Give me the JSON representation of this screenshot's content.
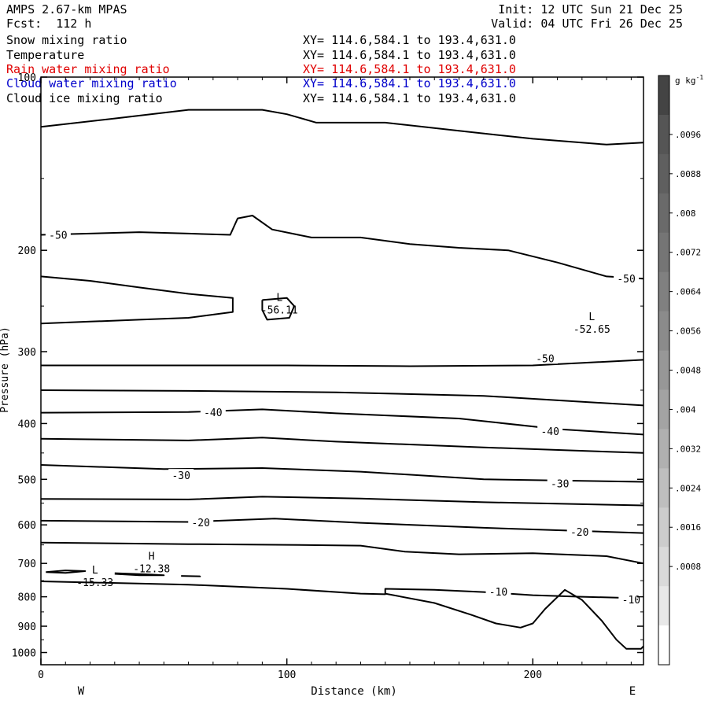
{
  "header": {
    "model": "AMPS 2.67-km MPAS",
    "forecast": "Fcst:  112 h",
    "init": "Init: 12 UTC Sun 21 Dec 25",
    "valid": "Valid: 04 UTC Fri 26 Dec 25"
  },
  "fields": [
    {
      "name": "Snow mixing ratio",
      "xy": "XY= 114.6,584.1 to 193.4,631.0",
      "color": "#000000"
    },
    {
      "name": "Temperature",
      "xy": "XY= 114.6,584.1 to 193.4,631.0",
      "color": "#000000"
    },
    {
      "name": "Rain water mixing ratio",
      "xy": "XY= 114.6,584.1 to 193.4,631.0",
      "color": "#e00000"
    },
    {
      "name": "Cloud water mixing ratio",
      "xy": "XY= 114.6,584.1 to 193.4,631.0",
      "color": "#0000cc"
    },
    {
      "name": "Cloud ice mixing ratio",
      "xy": "XY= 114.6,584.1 to 193.4,631.0",
      "color": "#000000"
    }
  ],
  "chart_data": {
    "type": "contour",
    "xlabel": "Distance (km)",
    "ylabel": "Pressure (hPa)",
    "xlim": [
      0,
      245
    ],
    "ylim": [
      1050,
      100
    ],
    "y_scale": "log",
    "x_ticks": [
      0,
      100,
      200
    ],
    "x_tick_labels": [
      "0",
      "100",
      "200"
    ],
    "y_ticks": [
      100,
      200,
      300,
      400,
      500,
      600,
      700,
      800,
      900,
      1000
    ],
    "y_tick_labels": [
      "100",
      "200",
      "300",
      "400",
      "500",
      "600",
      "700",
      "800",
      "900",
      "1000"
    ],
    "x_end_labels": {
      "left": "W",
      "right": "E"
    },
    "colorbar": {
      "unit": "g kg",
      "unit_exp": "-1",
      "labels": [
        ".0096",
        ".0088",
        ".008",
        ".0072",
        ".0064",
        ".0056",
        ".0048",
        ".004",
        ".0032",
        ".0024",
        ".0016",
        ".0008"
      ],
      "colors": [
        "#444444",
        "#555555",
        "#5f5f5f",
        "#6a6a6a",
        "#757575",
        "#808080",
        "#8b8b8b",
        "#979797",
        "#a3a3a3",
        "#b0b0b0",
        "#bebebe",
        "#cccccc",
        "#dadada",
        "#e8e8e8",
        "#ffffff"
      ]
    },
    "contour_labels": [
      {
        "text": "-50",
        "x": 7,
        "p": 188
      },
      {
        "text": "-50",
        "x": 238,
        "p": 224
      },
      {
        "text": "-50",
        "x": 205,
        "p": 308
      },
      {
        "text": "-40",
        "x": 70,
        "p": 382
      },
      {
        "text": "-40",
        "x": 207,
        "p": 412
      },
      {
        "text": "-30",
        "x": 57,
        "p": 492
      },
      {
        "text": "-30",
        "x": 211,
        "p": 508
      },
      {
        "text": "-20",
        "x": 65,
        "p": 594
      },
      {
        "text": "-20",
        "x": 219,
        "p": 617
      },
      {
        "text": "-10",
        "x": 186,
        "p": 784
      },
      {
        "text": "-10",
        "x": 240,
        "p": 808
      }
    ],
    "extrema": [
      {
        "type": "L",
        "value": "-56.11",
        "x": 97,
        "p": 248
      },
      {
        "type": "L",
        "value": "-52.65",
        "x": 224,
        "p": 268
      },
      {
        "type": "H",
        "value": "-12.38",
        "x": 45,
        "p": 698
      },
      {
        "type": "L",
        "value": "-15.33",
        "x": 22,
        "p": 738
      }
    ],
    "terrain": [
      [
        140,
        790
      ],
      [
        160,
        820
      ],
      [
        175,
        860
      ],
      [
        185,
        890
      ],
      [
        195,
        905
      ],
      [
        200,
        890
      ],
      [
        205,
        840
      ],
      [
        213,
        778
      ],
      [
        220,
        810
      ],
      [
        228,
        880
      ],
      [
        234,
        950
      ],
      [
        238,
        985
      ],
      [
        244,
        985
      ],
      [
        245,
        975
      ]
    ],
    "isotherms": [
      {
        "name": "-60",
        "points": [
          [
            0,
            122
          ],
          [
            30,
            118
          ],
          [
            60,
            114
          ],
          [
            90,
            114
          ],
          [
            100,
            116
          ],
          [
            112,
            120
          ],
          [
            140,
            120
          ],
          [
            170,
            124
          ],
          [
            200,
            128
          ],
          [
            230,
            131
          ],
          [
            245,
            130
          ]
        ]
      },
      {
        "name": "-55a",
        "points": [
          [
            0,
            222
          ],
          [
            20,
            226
          ],
          [
            40,
            232
          ],
          [
            60,
            238
          ],
          [
            78,
            242
          ],
          [
            78,
            256
          ],
          [
            60,
            262
          ],
          [
            40,
            264
          ],
          [
            20,
            266
          ],
          [
            0,
            268
          ]
        ]
      },
      {
        "name": "-55b",
        "points": [
          [
            90,
            244
          ],
          [
            100,
            242
          ],
          [
            103,
            250
          ],
          [
            101,
            262
          ],
          [
            92,
            264
          ],
          [
            90,
            254
          ],
          [
            90,
            244
          ]
        ]
      },
      {
        "name": "-50a",
        "points": [
          [
            0,
            188
          ],
          [
            20,
            187
          ],
          [
            40,
            186
          ],
          [
            60,
            187
          ],
          [
            77,
            188
          ],
          [
            80,
            176
          ],
          [
            86,
            174
          ],
          [
            94,
            184
          ],
          [
            110,
            190
          ],
          [
            130,
            190
          ],
          [
            150,
            195
          ],
          [
            170,
            198
          ],
          [
            190,
            200
          ],
          [
            210,
            210
          ],
          [
            230,
            222
          ],
          [
            245,
            224
          ]
        ]
      },
      {
        "name": "-50b",
        "points": [
          [
            0,
            317
          ],
          [
            50,
            317
          ],
          [
            100,
            317
          ],
          [
            150,
            318
          ],
          [
            200,
            317
          ],
          [
            245,
            310
          ]
        ]
      },
      {
        "name": "-45",
        "points": [
          [
            0,
            350
          ],
          [
            60,
            351
          ],
          [
            120,
            353
          ],
          [
            180,
            358
          ],
          [
            245,
            372
          ]
        ]
      },
      {
        "name": "-40",
        "points": [
          [
            0,
            383
          ],
          [
            60,
            382
          ],
          [
            90,
            378
          ],
          [
            120,
            384
          ],
          [
            170,
            392
          ],
          [
            210,
            409
          ],
          [
            245,
            418
          ]
        ]
      },
      {
        "name": "-35",
        "points": [
          [
            0,
            425
          ],
          [
            60,
            428
          ],
          [
            90,
            423
          ],
          [
            120,
            430
          ],
          [
            180,
            440
          ],
          [
            245,
            450
          ]
        ]
      },
      {
        "name": "-30",
        "points": [
          [
            0,
            472
          ],
          [
            50,
            480
          ],
          [
            90,
            478
          ],
          [
            130,
            485
          ],
          [
            180,
            500
          ],
          [
            245,
            505
          ]
        ]
      },
      {
        "name": "-25",
        "points": [
          [
            0,
            541
          ],
          [
            60,
            542
          ],
          [
            90,
            536
          ],
          [
            130,
            540
          ],
          [
            180,
            548
          ],
          [
            245,
            555
          ]
        ]
      },
      {
        "name": "-20",
        "points": [
          [
            0,
            590
          ],
          [
            60,
            593
          ],
          [
            95,
            585
          ],
          [
            130,
            595
          ],
          [
            180,
            607
          ],
          [
            245,
            620
          ]
        ]
      },
      {
        "name": "-15a",
        "points": [
          [
            0,
            644
          ],
          [
            60,
            648
          ],
          [
            100,
            650
          ],
          [
            130,
            652
          ],
          [
            148,
            668
          ],
          [
            170,
            675
          ],
          [
            200,
            672
          ],
          [
            230,
            680
          ],
          [
            245,
            700
          ]
        ]
      },
      {
        "name": "-15b",
        "points": [
          [
            2,
            725
          ],
          [
            10,
            720
          ],
          [
            18,
            722
          ],
          [
            10,
            727
          ],
          [
            2,
            725
          ]
        ]
      },
      {
        "name": "-15c",
        "points": [
          [
            30,
            728
          ],
          [
            45,
            732
          ],
          [
            50,
            734
          ],
          [
            40,
            734
          ],
          [
            30,
            730
          ]
        ]
      },
      {
        "name": "-15d",
        "points": [
          [
            57,
            736
          ],
          [
            65,
            737
          ]
        ]
      },
      {
        "name": "-10",
        "points": [
          [
            0,
            752
          ],
          [
            60,
            762
          ],
          [
            100,
            775
          ],
          [
            130,
            790
          ],
          [
            140,
            792
          ],
          [
            140,
            775
          ],
          [
            160,
            778
          ],
          [
            180,
            785
          ],
          [
            200,
            795
          ],
          [
            220,
            800
          ],
          [
            245,
            805
          ]
        ]
      }
    ]
  }
}
